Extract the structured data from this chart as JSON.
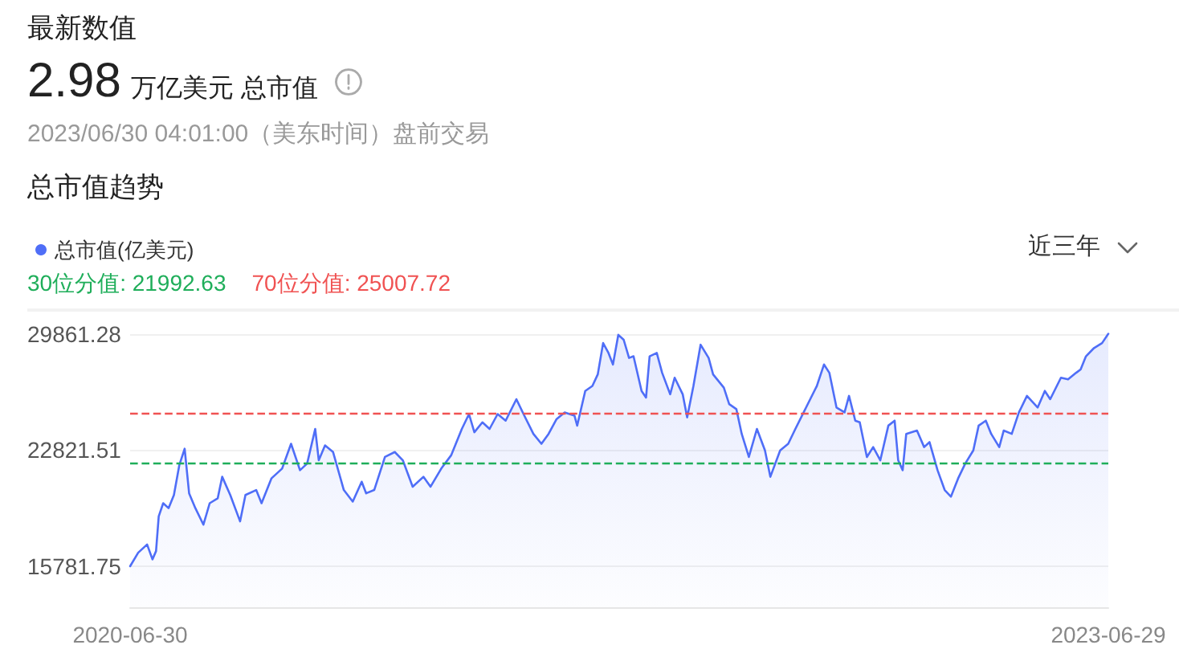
{
  "chart_data": {
    "type": "area",
    "title": "总市值趋势",
    "annotations": [
      "最新数值",
      "2.98",
      "万亿美元 总市值",
      "2023/06/30 04:01:00（美东时间）盘前交易",
      "近三年"
    ],
    "x": [
      "2020-06-30",
      "2020-07-09",
      "2020-07-19",
      "2020-07-25",
      "2020-07-29",
      "2020-08-01",
      "2020-08-06",
      "2020-08-12",
      "2020-08-18",
      "2020-08-24",
      "2020-08-30",
      "2020-09-04",
      "2020-09-11",
      "2020-09-20",
      "2020-09-27",
      "2020-10-06",
      "2020-10-11",
      "2020-10-20",
      "2020-10-31",
      "2020-11-06",
      "2020-11-18",
      "2020-11-24",
      "2020-12-05",
      "2020-12-17",
      "2020-12-27",
      "2021-01-06",
      "2021-01-14",
      "2021-01-23",
      "2021-01-27",
      "2021-02-03",
      "2021-02-12",
      "2021-02-24",
      "2021-03-06",
      "2021-03-16",
      "2021-03-21",
      "2021-03-30",
      "2021-04-11",
      "2021-04-22",
      "2021-05-01",
      "2021-05-12",
      "2021-05-24",
      "2021-06-01",
      "2021-06-13",
      "2021-06-24",
      "2021-07-06",
      "2021-07-14",
      "2021-07-20",
      "2021-07-29",
      "2021-08-06",
      "2021-08-15",
      "2021-08-24",
      "2021-09-05",
      "2021-09-13",
      "2021-09-24",
      "2021-10-03",
      "2021-10-11",
      "2021-10-20",
      "2021-10-29",
      "2021-11-09",
      "2021-11-12",
      "2021-11-21",
      "2021-11-29",
      "2021-12-05",
      "2021-12-11",
      "2021-12-17",
      "2021-12-22",
      "2021-12-28",
      "2022-01-03",
      "2022-01-09",
      "2022-01-14",
      "2022-01-23",
      "2022-01-28",
      "2022-02-01",
      "2022-02-09",
      "2022-02-15",
      "2022-02-24",
      "2022-03-01",
      "2022-03-10",
      "2022-03-15",
      "2022-03-22",
      "2022-03-30",
      "2022-04-08",
      "2022-04-13",
      "2022-04-25",
      "2022-05-01",
      "2022-05-09",
      "2022-05-15",
      "2022-05-23",
      "2022-06-01",
      "2022-06-10",
      "2022-06-16",
      "2022-06-27",
      "2022-07-06",
      "2022-07-14",
      "2022-07-26",
      "2022-08-07",
      "2022-08-15",
      "2022-08-21",
      "2022-08-29",
      "2022-09-07",
      "2022-09-12",
      "2022-09-19",
      "2022-09-24",
      "2022-10-02",
      "2022-10-09",
      "2022-10-17",
      "2022-10-26",
      "2022-11-02",
      "2022-11-06",
      "2022-11-11",
      "2022-11-15",
      "2022-11-27",
      "2022-12-05",
      "2022-12-11",
      "2022-12-20",
      "2022-12-28",
      "2023-01-04",
      "2023-01-12",
      "2023-01-20",
      "2023-01-29",
      "2023-02-04",
      "2023-02-12",
      "2023-02-18",
      "2023-02-27",
      "2023-03-04",
      "2023-03-13",
      "2023-03-21",
      "2023-03-30",
      "2023-04-11",
      "2023-04-19",
      "2023-04-25",
      "2023-05-07",
      "2023-05-15",
      "2023-05-24",
      "2023-05-29",
      "2023-06-04",
      "2023-06-13",
      "2023-06-22",
      "2023-06-29"
    ],
    "series": [
      {
        "name": "总市值(亿美元)",
        "color": "#4f6ef7",
        "values": [
          15781.75,
          16600,
          17100,
          16200,
          16700,
          18800,
          19600,
          19300,
          20100,
          21900,
          22900,
          20200,
          19300,
          18300,
          19600,
          19900,
          21200,
          20100,
          18500,
          20100,
          20400,
          19600,
          21100,
          21700,
          23200,
          21600,
          22000,
          24100,
          22200,
          23100,
          22700,
          20400,
          19700,
          20900,
          20200,
          20400,
          22400,
          22700,
          22200,
          20600,
          21200,
          20600,
          21700,
          22500,
          24100,
          25000,
          23900,
          24500,
          24100,
          25000,
          24600,
          25900,
          25000,
          23800,
          23200,
          23800,
          24700,
          25100,
          24900,
          24300,
          26400,
          26700,
          27400,
          29300,
          28700,
          28000,
          29800,
          29500,
          28400,
          28500,
          26400,
          26000,
          28500,
          28700,
          27500,
          26200,
          27200,
          26200,
          24800,
          26700,
          29200,
          28400,
          27400,
          26600,
          25600,
          25300,
          23800,
          22400,
          24100,
          22800,
          21200,
          22800,
          23200,
          24100,
          25400,
          26700,
          28000,
          27500,
          25400,
          25100,
          26100,
          24600,
          24500,
          22400,
          23000,
          22200,
          24300,
          24600,
          22200,
          21600,
          23800,
          24000,
          23000,
          23300,
          21600,
          20400,
          20000,
          21100,
          22000,
          22800,
          24300,
          24600,
          23800,
          23000,
          24000,
          23800,
          25100,
          26100,
          25400,
          26400,
          25900,
          27200,
          27100,
          27500,
          27700,
          28500,
          29000,
          29300,
          29861.28
        ]
      }
    ],
    "xlim": [
      "2020-06-30",
      "2023-06-29"
    ],
    "xticks": [
      "2020-06-30",
      "2023-06-29"
    ],
    "ylim": [
      13300,
      31300
    ],
    "yticks": [
      15781.75,
      22821.51,
      29861.28
    ],
    "ref_lines": [
      {
        "axis": "y",
        "value": 21992.63,
        "label": "30位分值: 21992.63",
        "color": "#1fae5a",
        "line_style": "dashed"
      },
      {
        "axis": "y",
        "value": 25007.72,
        "label": "70位分值: 25007.72",
        "color": "#f05252",
        "line_style": "dashed"
      }
    ],
    "grid": "y",
    "legend": "top left"
  }
}
